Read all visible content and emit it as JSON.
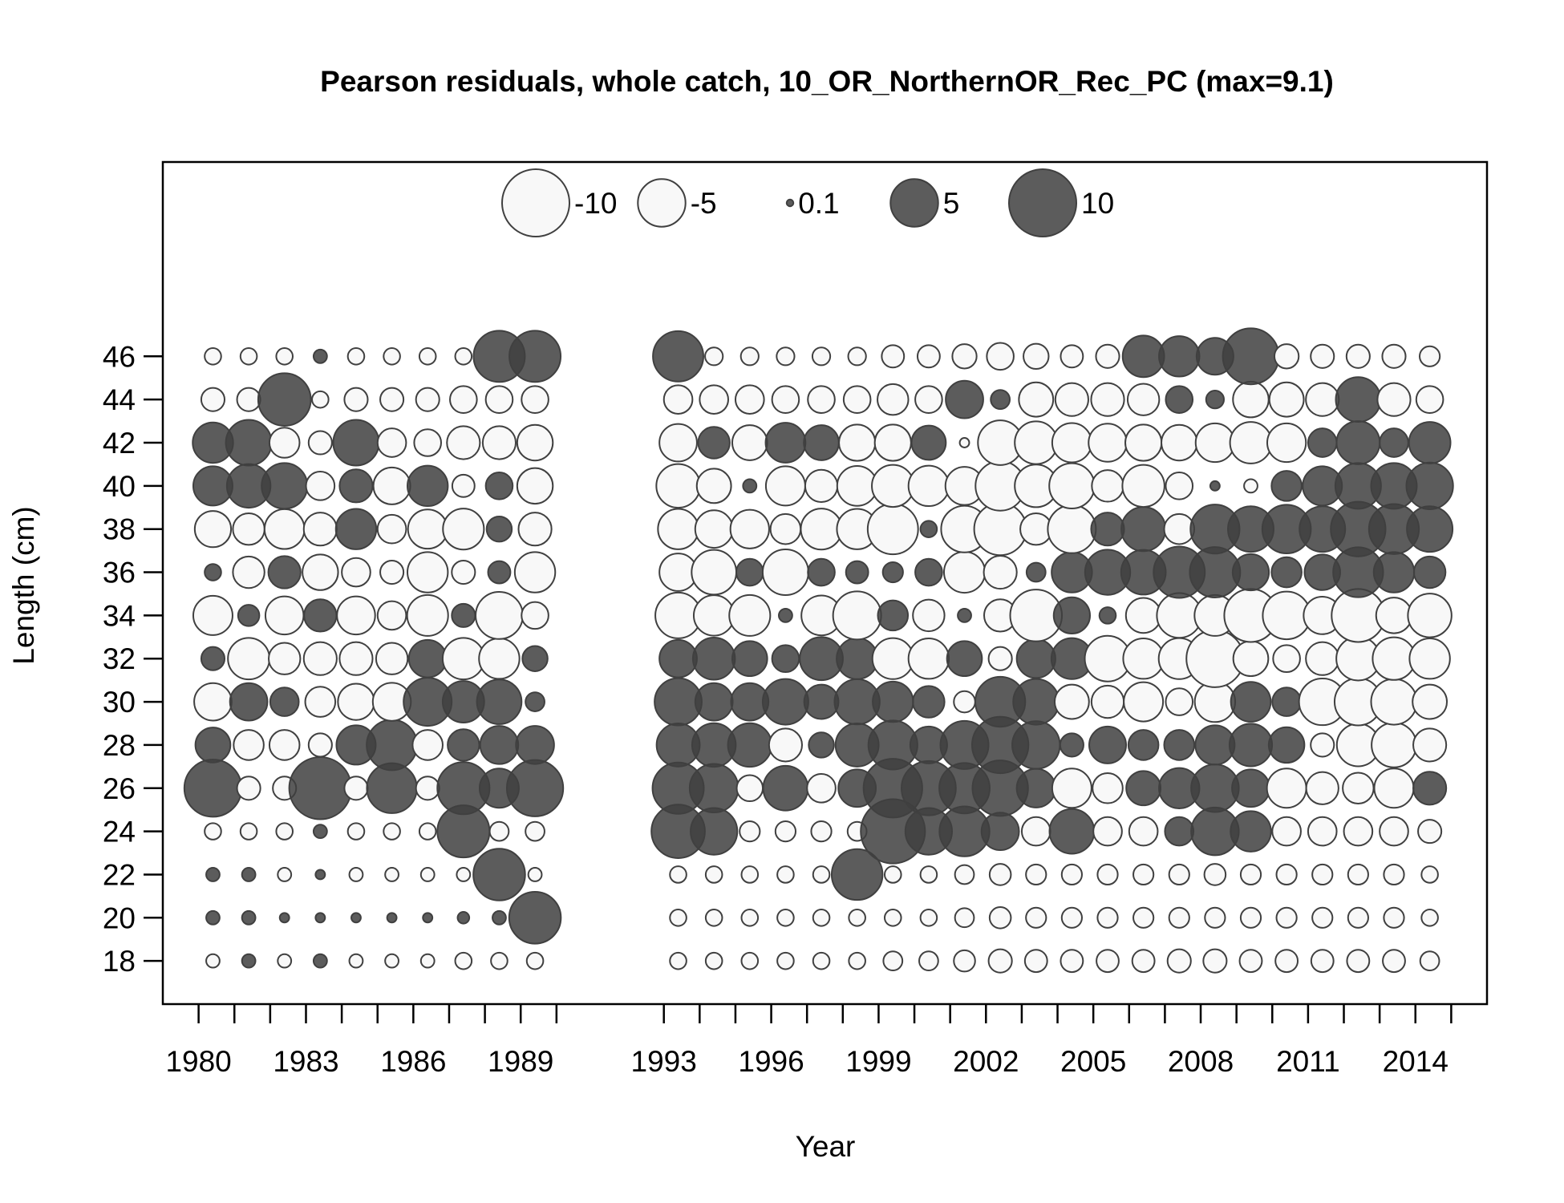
{
  "chart_data": {
    "type": "bubble",
    "title": "Pearson residuals, whole catch, 10_OR_NorthernOR_Rec_PC (max=9.1)",
    "xlabel": "Year",
    "ylabel": "Length (cm)",
    "xlim": [
      1979,
      2016
    ],
    "ylim": [
      16,
      55
    ],
    "x_ticks": [
      1980,
      1981,
      1982,
      1983,
      1984,
      1985,
      1986,
      1987,
      1988,
      1989,
      1990,
      1993,
      1994,
      1995,
      1996,
      1997,
      1998,
      1999,
      2000,
      2001,
      2002,
      2003,
      2004,
      2005,
      2006,
      2007,
      2008,
      2009,
      2010,
      2011,
      2012,
      2013,
      2014,
      2015
    ],
    "x_tick_labels": [
      {
        "x": 1980,
        "label": "1980"
      },
      {
        "x": 1983,
        "label": "1983"
      },
      {
        "x": 1986,
        "label": "1986"
      },
      {
        "x": 1989,
        "label": "1989"
      },
      {
        "x": 1993,
        "label": "1993"
      },
      {
        "x": 1996,
        "label": "1996"
      },
      {
        "x": 1999,
        "label": "1999"
      },
      {
        "x": 2002,
        "label": "2002"
      },
      {
        "x": 2005,
        "label": "2005"
      },
      {
        "x": 2008,
        "label": "2008"
      },
      {
        "x": 2011,
        "label": "2011"
      },
      {
        "x": 2014,
        "label": "2014"
      }
    ],
    "y_ticks": [
      {
        "y": 18,
        "label": "18"
      },
      {
        "y": 20,
        "label": "20"
      },
      {
        "y": 22,
        "label": "22"
      },
      {
        "y": 24,
        "label": "24"
      },
      {
        "y": 26,
        "label": "26"
      },
      {
        "y": 28,
        "label": "28"
      },
      {
        "y": 30,
        "label": "30"
      },
      {
        "y": 32,
        "label": "32"
      },
      {
        "y": 34,
        "label": "34"
      },
      {
        "y": 36,
        "label": "36"
      },
      {
        "y": 38,
        "label": "38"
      },
      {
        "y": 40,
        "label": "40"
      },
      {
        "y": 42,
        "label": "42"
      },
      {
        "y": 44,
        "label": "44"
      },
      {
        "y": 46,
        "label": "46"
      }
    ],
    "legend_placement": "top",
    "legend": [
      {
        "value": -10,
        "label": "-10"
      },
      {
        "value": -5,
        "label": "-5"
      },
      {
        "value": 0.1,
        "label": "0.1"
      },
      {
        "value": 5,
        "label": "5"
      },
      {
        "value": 10,
        "label": "10"
      }
    ],
    "colors": {
      "positive": "#3f3f3f",
      "negative_fill": "#f8f8f8",
      "stroke": "#404040"
    },
    "years": [
      1980.4,
      1981.4,
      1982.4,
      1983.4,
      1984.4,
      1985.4,
      1986.4,
      1987.4,
      1988.4,
      1989.4,
      1993.4,
      1994.4,
      1995.4,
      1996.4,
      1997.4,
      1998.4,
      1999.4,
      2000.4,
      2001.4,
      2002.4,
      2003.4,
      2004.4,
      2005.4,
      2006.4,
      2007.4,
      2008.4,
      2009.4,
      2010.4,
      2011.4,
      2012.4,
      2013.4,
      2014.4
    ],
    "lengths": [
      18,
      20,
      22,
      24,
      26,
      28,
      30,
      32,
      34,
      36,
      38,
      40,
      42,
      44,
      46
    ],
    "residuals": {
      "18": [
        -0.4,
        0.4,
        -0.4,
        0.4,
        -0.4,
        -0.4,
        -0.4,
        -0.6,
        -0.6,
        -0.6,
        -0.6,
        -0.6,
        -0.6,
        -0.6,
        -0.6,
        -0.6,
        -0.8,
        -0.8,
        -1,
        -1.2,
        -1.1,
        -1.1,
        -1.1,
        -1.1,
        -1.2,
        -1.2,
        -1.1,
        -1.1,
        -1.1,
        -1.1,
        -1.1,
        -0.8
      ],
      "20": [
        0.4,
        0.4,
        0.2,
        0.2,
        0.2,
        0.2,
        0.2,
        0.3,
        0.4,
        5.9,
        -0.6,
        -0.6,
        -0.6,
        -0.6,
        -0.6,
        -0.6,
        -0.6,
        -0.6,
        -0.8,
        -1,
        -0.9,
        -0.9,
        -0.9,
        -0.9,
        -0.9,
        -0.9,
        -0.9,
        -0.9,
        -0.9,
        -0.9,
        -0.9,
        -0.6
      ],
      "22": [
        0.4,
        0.4,
        -0.4,
        0.2,
        -0.4,
        -0.4,
        -0.4,
        -0.4,
        5.9,
        -0.4,
        -0.6,
        -0.6,
        -0.6,
        -0.6,
        -0.6,
        5.7,
        -0.6,
        -0.6,
        -0.8,
        -1,
        -0.9,
        -0.9,
        -0.9,
        -0.9,
        -0.9,
        -1,
        -0.9,
        -0.9,
        -0.9,
        -0.9,
        -0.9,
        -0.6
      ],
      "24": [
        -0.6,
        -0.6,
        -0.6,
        0.4,
        -0.6,
        -0.6,
        -0.6,
        6.0,
        -0.8,
        -0.8,
        6.3,
        4.8,
        -0.9,
        -0.9,
        -0.9,
        -0.8,
        9.1,
        4.8,
        5.5,
        3.1,
        -1.8,
        4.4,
        -1.8,
        -1.8,
        1.8,
        5.0,
        3.6,
        -1.8,
        -1.8,
        -1.8,
        -1.8,
        -1.2
      ],
      "26": [
        7.2,
        -1.2,
        -1.2,
        8.5,
        -1.2,
        5.5,
        -1.2,
        6.0,
        3.4,
        7.0,
        5.8,
        5.2,
        -1.5,
        4.4,
        -1.8,
        3.1,
        7.6,
        6.5,
        5.6,
        6.8,
        3.3,
        -3.4,
        -2,
        2.6,
        3.6,
        5.0,
        3.1,
        -3.4,
        -2.3,
        -2.1,
        -3.4,
        2.4
      ],
      "28": [
        2.7,
        -2,
        -2,
        -1.2,
        3.4,
        5.6,
        -2,
        2.2,
        3.2,
        3.2,
        4.1,
        4.2,
        4.2,
        -2.4,
        1.4,
        4.1,
        5.3,
        3.0,
        5.1,
        7.0,
        5.0,
        1.2,
        3.0,
        2.0,
        2.0,
        3.4,
        4.0,
        2.8,
        -1.2,
        -4.0,
        -4.4,
        -2.4
      ],
      "30": [
        -3.1,
        3.1,
        1.8,
        -2,
        -2.9,
        -3.2,
        5.1,
        3.8,
        4.4,
        0.8,
        4.9,
        3.1,
        3.1,
        4.6,
        2.6,
        4.5,
        3.6,
        2.2,
        -1,
        5.5,
        4.6,
        -2.6,
        -2.3,
        -3.4,
        -1.6,
        -3.6,
        3.5,
        1.8,
        -4.8,
        -4.9,
        -4.6,
        -2.6
      ],
      "32": [
        1.2,
        -3.8,
        -2.2,
        -2.4,
        -2.4,
        -2.2,
        3.1,
        -3.8,
        -3.6,
        1.4,
        3.1,
        3.9,
        2.7,
        1.6,
        4.1,
        3.7,
        -3.7,
        -3.6,
        2.7,
        -1.2,
        3.3,
        3.7,
        -4.6,
        -3.6,
        -3.7,
        -7.2,
        -2.7,
        -1.6,
        -2.4,
        -4.2,
        -4.0,
        -3.6
      ],
      "34": [
        -3.4,
        1,
        -3.2,
        2.3,
        -3.2,
        -1.8,
        -3.7,
        1.2,
        -4.9,
        -1.6,
        -4.6,
        -3.6,
        -3.7,
        0.4,
        -3.5,
        -5.1,
        2.0,
        -2.2,
        0.4,
        -2.3,
        -5.9,
        2.9,
        0.6,
        -2.7,
        -4.4,
        -3.7,
        -6.2,
        -5.0,
        -3.1,
        -6.2,
        -2.8,
        -4.2
      ],
      "36": [
        0.6,
        -2.2,
        2.3,
        -2.8,
        -1.8,
        -1.2,
        -3.6,
        -1.2,
        1.1,
        -3.6,
        -3.1,
        -4.4,
        1.6,
        -4.6,
        1.6,
        1.1,
        0.9,
        1.6,
        -3.7,
        -2.4,
        0.8,
        3.6,
        4.5,
        4.4,
        5.8,
        5.6,
        2.9,
        2.0,
        2.8,
        5.5,
        3.6,
        2.2
      ],
      "38": [
        -2.9,
        -2.2,
        -3.5,
        -2.4,
        3.6,
        -1.8,
        -3.4,
        -3.7,
        1.4,
        -2.4,
        -3.6,
        -3.1,
        -3.3,
        -2.0,
        -3.7,
        -3.6,
        -5.6,
        0.6,
        -4.8,
        -6.0,
        -2.2,
        -5.1,
        2.4,
        4.3,
        -2.0,
        5.3,
        4.6,
        5.2,
        4.6,
        6.6,
        5.5,
        4.6
      ],
      "40": [
        3.4,
        4.2,
        4.6,
        -1.8,
        2.4,
        -3.0,
        3.6,
        -1.1,
        1.6,
        -2.8,
        -4.2,
        -2.6,
        0.4,
        -3.4,
        -2.3,
        -3.5,
        -3.9,
        -3.6,
        -3.2,
        -5.4,
        -4.0,
        -4.5,
        -2.2,
        -3.9,
        -1.6,
        0.2,
        -0.4,
        2.0,
        3.4,
        4.6,
        4.6,
        4.8
      ],
      "42": [
        3.6,
        4.6,
        -2.0,
        -1.2,
        4.6,
        -1.8,
        -1.6,
        -2.4,
        -2.4,
        -2.8,
        -3.1,
        2.2,
        -2.7,
        3.5,
        2.7,
        -2.9,
        -2.9,
        2.6,
        -0.2,
        -4.4,
        -4.0,
        -3.4,
        -3.2,
        -2.9,
        -2.8,
        -3.3,
        -3.8,
        -3.3,
        1.8,
        4.1,
        1.8,
        3.8
      ],
      "44": [
        -1.2,
        -1.2,
        6.1,
        -0.6,
        -1.2,
        -1.2,
        -1.2,
        -1.6,
        -1.6,
        -1.6,
        -1.8,
        -1.8,
        -1.8,
        -1.6,
        -1.6,
        -1.6,
        -2.1,
        -1.6,
        3.1,
        0.8,
        -2.6,
        -2.4,
        -2.4,
        -2.2,
        1.6,
        0.7,
        -2.8,
        -2.6,
        -2.4,
        4.4,
        -2.4,
        -1.6
      ],
      "46": [
        -0.6,
        -0.6,
        -0.6,
        0.4,
        -0.6,
        -0.6,
        -0.6,
        -0.6,
        5.8,
        5.8,
        5.6,
        -0.7,
        -0.7,
        -0.7,
        -0.7,
        -0.7,
        -1.1,
        -1.1,
        -1.3,
        -1.6,
        -1.4,
        -1.1,
        -1.2,
        3.8,
        3.6,
        3.0,
        6.9,
        -1.3,
        -1.2,
        -1.2,
        -1.2,
        -0.9
      ]
    }
  }
}
